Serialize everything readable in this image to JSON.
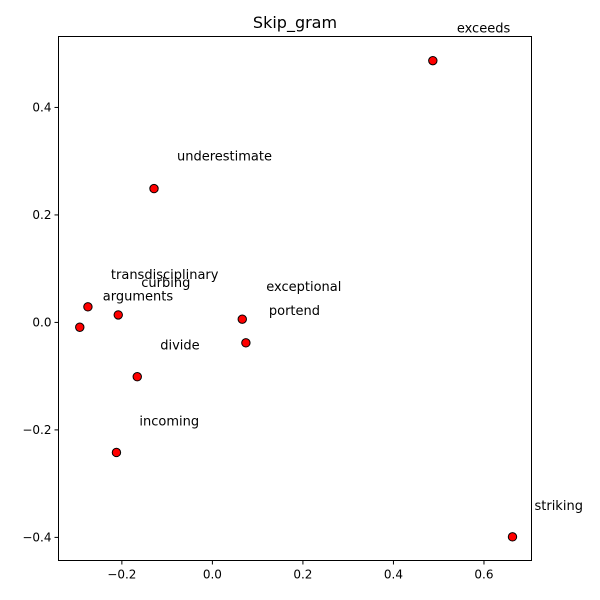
{
  "chart_data": {
    "type": "scatter",
    "title": "Skip_gram",
    "xlabel": "",
    "ylabel": "",
    "xlim": [
      -0.34,
      0.705
    ],
    "ylim": [
      -0.443,
      0.532
    ],
    "xticks": [
      -0.2,
      0.0,
      0.2,
      0.4,
      0.6
    ],
    "xtick_labels": [
      "−0.2",
      "0.0",
      "0.2",
      "0.4",
      "0.6"
    ],
    "yticks": [
      -0.4,
      -0.2,
      0.0,
      0.2,
      0.4
    ],
    "ytick_labels": [
      "−0.4",
      "−0.2",
      "0.0",
      "0.2",
      "0.4"
    ],
    "grid": false,
    "marker_color": "#ff0000",
    "marker_edge_color": "#000000",
    "points": [
      {
        "word": "exceeds",
        "x": 0.487,
        "y": 0.487
      },
      {
        "word": "underestimate",
        "x": -0.129,
        "y": 0.249
      },
      {
        "word": "transdisciplinary",
        "x": -0.275,
        "y": 0.029
      },
      {
        "word": "curbing",
        "x": -0.208,
        "y": 0.014
      },
      {
        "word": "arguments",
        "x": -0.293,
        "y": -0.009
      },
      {
        "word": "exceptional",
        "x": 0.066,
        "y": 0.006
      },
      {
        "word": "portend",
        "x": 0.074,
        "y": -0.038
      },
      {
        "word": "divide",
        "x": -0.166,
        "y": -0.101
      },
      {
        "word": "incoming",
        "x": -0.212,
        "y": -0.242
      },
      {
        "word": "striking",
        "x": 0.663,
        "y": -0.399
      }
    ]
  }
}
